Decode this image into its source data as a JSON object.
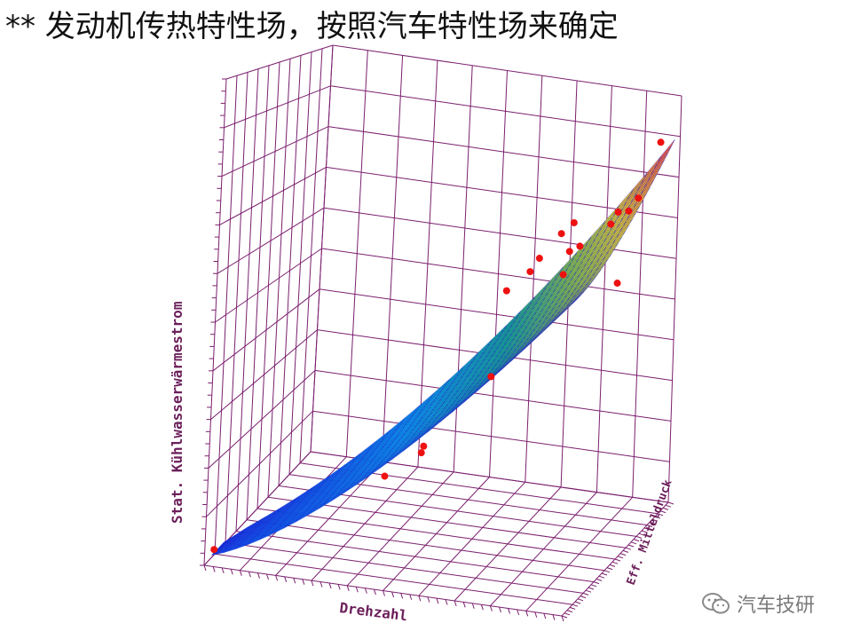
{
  "slide": {
    "title": "** 发动机传热特性场，按照汽车特性场来确定"
  },
  "watermark": {
    "text": "汽车技研",
    "icon": "wechat-icon"
  },
  "colors": {
    "box_grid": "#7b1f6e",
    "surface_mesh": "#1a1acc",
    "points": "#ee1111",
    "axis_text": "#6b1f5a"
  },
  "chart_data": {
    "type": "surface",
    "title": "",
    "xlabel": "Drehzahl",
    "ylabel": "Eff. Mitteldruck",
    "zlabel": "Stat. Kühlwasserwärmestrom",
    "grid": true,
    "scatter_points": [
      {
        "x": 0.02,
        "y": 0.02,
        "z": 0.03
      },
      {
        "x": 0.45,
        "y": 0.15,
        "z": 0.2
      },
      {
        "x": 0.55,
        "y": 0.15,
        "z": 0.26
      },
      {
        "x": 0.55,
        "y": 0.17,
        "z": 0.27
      },
      {
        "x": 0.68,
        "y": 0.35,
        "z": 0.4
      },
      {
        "x": 0.88,
        "y": 0.85,
        "z": 0.55
      },
      {
        "x": 0.73,
        "y": 0.3,
        "z": 0.6
      },
      {
        "x": 0.78,
        "y": 0.35,
        "z": 0.64
      },
      {
        "x": 0.8,
        "y": 0.6,
        "z": 0.6
      },
      {
        "x": 0.82,
        "y": 0.3,
        "z": 0.68
      },
      {
        "x": 0.86,
        "y": 0.45,
        "z": 0.68
      },
      {
        "x": 0.88,
        "y": 0.48,
        "z": 0.69
      },
      {
        "x": 0.88,
        "y": 0.3,
        "z": 0.74
      },
      {
        "x": 0.9,
        "y": 0.35,
        "z": 0.76
      },
      {
        "x": 0.93,
        "y": 0.6,
        "z": 0.73
      },
      {
        "x": 0.95,
        "y": 0.6,
        "z": 0.76
      },
      {
        "x": 0.95,
        "y": 0.7,
        "z": 0.75
      },
      {
        "x": 0.97,
        "y": 0.72,
        "z": 0.78
      },
      {
        "x": 0.99,
        "y": 0.85,
        "z": 0.9
      }
    ]
  }
}
